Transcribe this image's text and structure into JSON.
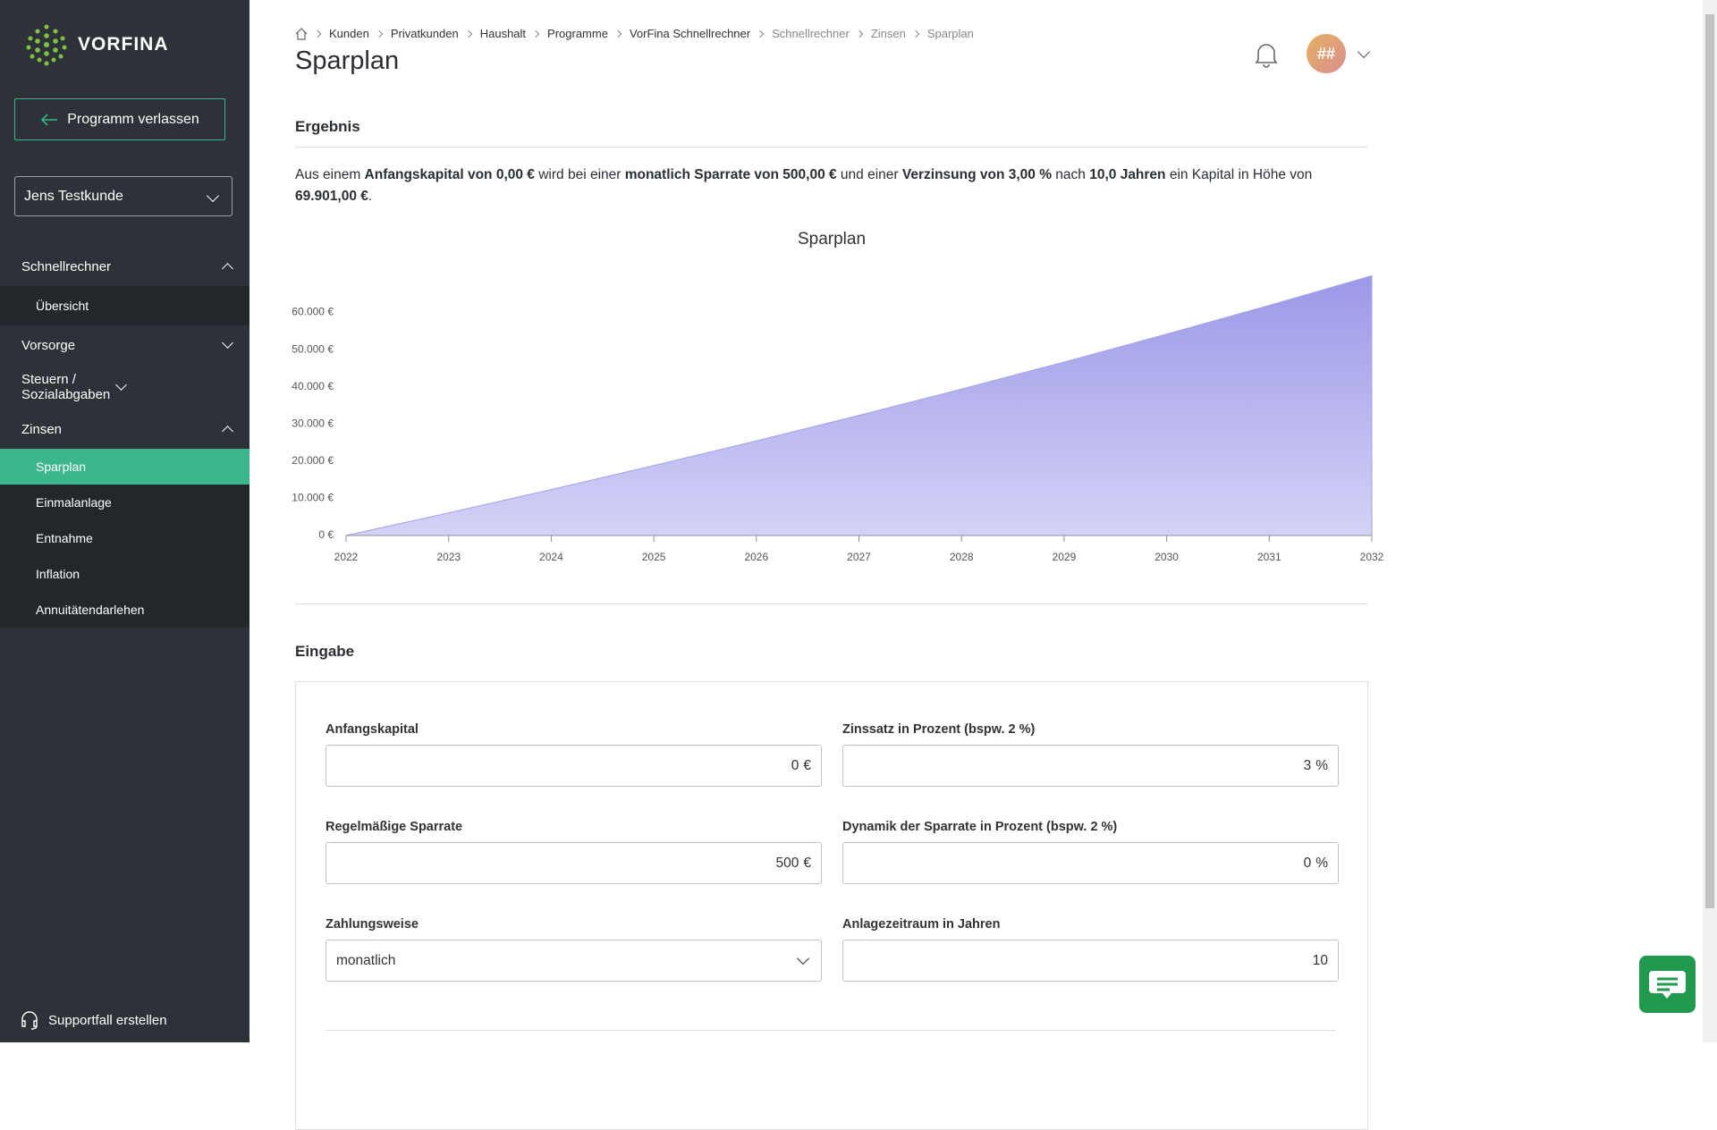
{
  "sidebar": {
    "brand": "VORFINA",
    "exit_button": "Programm verlassen",
    "client": "Jens Testkunde",
    "nav": [
      {
        "label": "Schnellrechner",
        "items": [
          "Übersicht"
        ]
      },
      {
        "label": "Vorsorge"
      },
      {
        "label": "Steuern / Sozialabgaben"
      },
      {
        "label": "Zinsen",
        "items": [
          "Sparplan",
          "Einmalanlage",
          "Entnahme",
          "Inflation",
          "Annuitätendarlehen"
        ]
      }
    ],
    "active_item": "Sparplan",
    "support": "Supportfall erstellen"
  },
  "header": {
    "breadcrumb": [
      "Kunden",
      "Privatkunden",
      "Haushalt",
      "Programme",
      "VorFina Schnellrechner",
      "Schnellrechner",
      "Zinsen",
      "Sparplan"
    ],
    "title": "Sparplan",
    "avatar": "##"
  },
  "result": {
    "heading": "Ergebnis",
    "parts": [
      "Aus einem ",
      "Anfangskapital von 0,00 €",
      " wird bei einer ",
      "monatlich Sparrate von 500,00 €",
      " und einer ",
      "Verzinsung von 3,00 %",
      " nach ",
      "10,0 Jahren",
      " ein Kapital in Höhe von ",
      "69.901,00 €",
      "."
    ]
  },
  "chart_data": {
    "type": "area",
    "title": "Sparplan",
    "x": [
      2022,
      2023,
      2024,
      2025,
      2026,
      2027,
      2028,
      2029,
      2030,
      2031,
      2032
    ],
    "series": [
      {
        "name": "Sparplan",
        "color": "#a4a1ea",
        "values": [
          0,
          6085,
          12355,
          18816,
          25473,
          32333,
          39401,
          46685,
          54190,
          61923,
          69901
        ]
      }
    ],
    "xlim": [
      2022,
      2032
    ],
    "xticks": [
      2022,
      2023,
      2024,
      2025,
      2026,
      2027,
      2028,
      2029,
      2030,
      2031,
      2032
    ],
    "ylim": [
      0,
      70000
    ],
    "yticks": [
      {
        "value": 0,
        "label": "0 €"
      },
      {
        "value": 10000,
        "label": "10.000 €"
      },
      {
        "value": 20000,
        "label": "20.000 €"
      },
      {
        "value": 30000,
        "label": "30.000 €"
      },
      {
        "value": 40000,
        "label": "40.000 €"
      },
      {
        "value": 50000,
        "label": "50.000 €"
      },
      {
        "value": 60000,
        "label": "60.000 €"
      }
    ],
    "grid": false
  },
  "input": {
    "heading": "Eingabe",
    "fields": [
      {
        "label": "Anfangskapital",
        "value": "0",
        "unit": "€"
      },
      {
        "label": "Zinssatz in Prozent (bspw. 2 %)",
        "value": "3",
        "unit": "%"
      },
      {
        "label": "Regelmäßige Sparrate",
        "value": "500",
        "unit": "€"
      },
      {
        "label": "Dynamik der Sparrate in Prozent (bspw. 2 %)",
        "value": "0",
        "unit": "%"
      },
      {
        "label": "Zahlungsweise",
        "value": "monatlich"
      },
      {
        "label": "Anlagezeitraum in Jahren",
        "value": "10"
      }
    ]
  }
}
